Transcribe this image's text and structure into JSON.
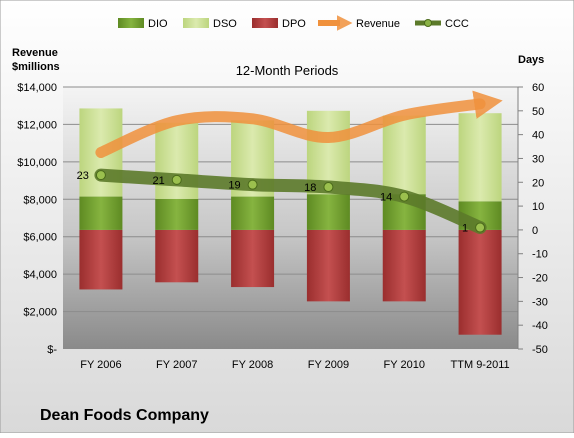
{
  "chart_data": {
    "type": "bar",
    "title": "12-Month Periods",
    "company": "Dean Foods Company",
    "left_axis_title_line1": "Revenue",
    "left_axis_title_line2": "$millions",
    "right_axis_title": "Days",
    "categories": [
      "FY 2006",
      "FY 2007",
      "FY 2008",
      "FY 2009",
      "FY 2010",
      "TTM 9-2011"
    ],
    "left_axis": {
      "min": 0,
      "max": 14000,
      "step": 2000,
      "tick_labels": [
        "$-",
        "$2,000",
        "$4,000",
        "$6,000",
        "$8,000",
        "$10,000",
        "$12,000",
        "$14,000"
      ]
    },
    "right_axis": {
      "min": -50,
      "max": 60,
      "step": 10,
      "tick_labels": [
        "-50",
        "-40",
        "-30",
        "-20",
        "-10",
        "0",
        "10",
        "20",
        "30",
        "40",
        "50",
        "60"
      ]
    },
    "series": [
      {
        "name": "DIO",
        "axis": "right",
        "kind": "stacked-bar",
        "color": "#6e9a2e",
        "values": [
          14,
          13,
          14,
          15,
          15,
          12
        ]
      },
      {
        "name": "DSO",
        "axis": "right",
        "kind": "stacked-bar",
        "color": "#c9df8f",
        "values": [
          37,
          32,
          32,
          35,
          33,
          37
        ]
      },
      {
        "name": "DPO",
        "axis": "right",
        "kind": "negative-bar",
        "color": "#b53a3a",
        "values": [
          -25,
          -22,
          -24,
          -30,
          -30,
          -44
        ]
      },
      {
        "name": "Revenue",
        "axis": "left",
        "kind": "line",
        "color": "#f0913c",
        "values": [
          10500,
          12200,
          12300,
          11300,
          12500,
          13100
        ]
      },
      {
        "name": "CCC",
        "axis": "right",
        "kind": "line",
        "color": "#5c7a2a",
        "values": [
          23,
          21,
          19,
          18,
          14,
          1
        ]
      }
    ],
    "data_labels": [
      "23",
      "21",
      "19",
      "18",
      "14",
      "1"
    ],
    "legend_position": "top"
  }
}
